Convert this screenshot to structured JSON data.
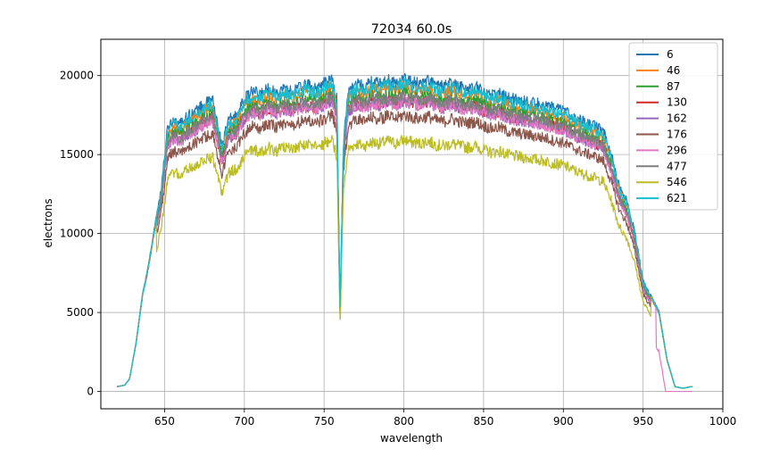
{
  "chart_data": {
    "type": "line",
    "title": "72034 60.0s",
    "xlabel": "wavelength",
    "ylabel": "electrons",
    "xlim": [
      610,
      1000
    ],
    "ylim": [
      -1100,
      22300
    ],
    "xticks": [
      650,
      700,
      750,
      800,
      850,
      900,
      950,
      1000
    ],
    "xtick_labels": [
      "650",
      "700",
      "750",
      "800",
      "850",
      "900",
      "950",
      "1000"
    ],
    "yticks": [
      0,
      5000,
      10000,
      15000,
      20000
    ],
    "ytick_labels": [
      "0",
      "5000",
      "10000",
      "15000",
      "20000"
    ],
    "grid": true,
    "legend_position": "top-right",
    "base_profile": {
      "x": [
        620,
        625,
        628,
        632,
        636,
        640,
        644,
        648,
        652,
        656,
        660,
        665,
        670,
        675,
        680,
        683,
        686,
        690,
        695,
        700,
        705,
        710,
        715,
        720,
        725,
        730,
        735,
        740,
        745,
        750,
        755,
        758,
        760,
        762,
        765,
        770,
        775,
        780,
        785,
        790,
        795,
        800,
        805,
        810,
        815,
        820,
        825,
        830,
        835,
        840,
        845,
        850,
        855,
        860,
        865,
        870,
        875,
        880,
        885,
        890,
        895,
        900,
        905,
        910,
        915,
        920,
        925,
        930,
        935,
        940,
        945,
        950,
        955,
        960,
        965,
        970,
        975,
        980
      ],
      "y": [
        300,
        400,
        800,
        3000,
        6000,
        8000,
        10500,
        13000,
        16800,
        17200,
        17000,
        17500,
        17800,
        18200,
        18500,
        17000,
        15500,
        17200,
        17500,
        18500,
        19000,
        18800,
        19200,
        18900,
        19200,
        19000,
        19300,
        19400,
        19200,
        19500,
        19800,
        18500,
        5000,
        15500,
        19000,
        19500,
        19300,
        19600,
        19500,
        19700,
        19500,
        19800,
        19600,
        19500,
        19700,
        19400,
        19300,
        19500,
        19300,
        19200,
        19300,
        19000,
        18800,
        18900,
        18600,
        18500,
        18400,
        18300,
        18200,
        18100,
        17900,
        17800,
        17500,
        17200,
        17000,
        16800,
        16500,
        15000,
        13000,
        12000,
        10000,
        7000,
        6000,
        5000,
        2000,
        300,
        200,
        300
      ]
    },
    "series": [
      {
        "name": "6",
        "color": "#1f77b4",
        "scale": 1.0
      },
      {
        "name": "46",
        "color": "#ff7f0e",
        "scale": 0.975
      },
      {
        "name": "87",
        "color": "#2ca02c",
        "scale": 0.955
      },
      {
        "name": "130",
        "color": "#d62728",
        "scale": 0.935
      },
      {
        "name": "162",
        "color": "#9467bd",
        "scale": 0.93
      },
      {
        "name": "176",
        "color": "#8c564b",
        "scale": 0.885
      },
      {
        "name": "296",
        "color": "#e377c2",
        "scale": 0.93
      },
      {
        "name": "477",
        "color": "#7f7f7f",
        "scale": 0.945
      },
      {
        "name": "546",
        "color": "#bcbd22",
        "scale": 0.805
      },
      {
        "name": "621",
        "color": "#17becf",
        "scale": 0.985
      }
    ]
  }
}
